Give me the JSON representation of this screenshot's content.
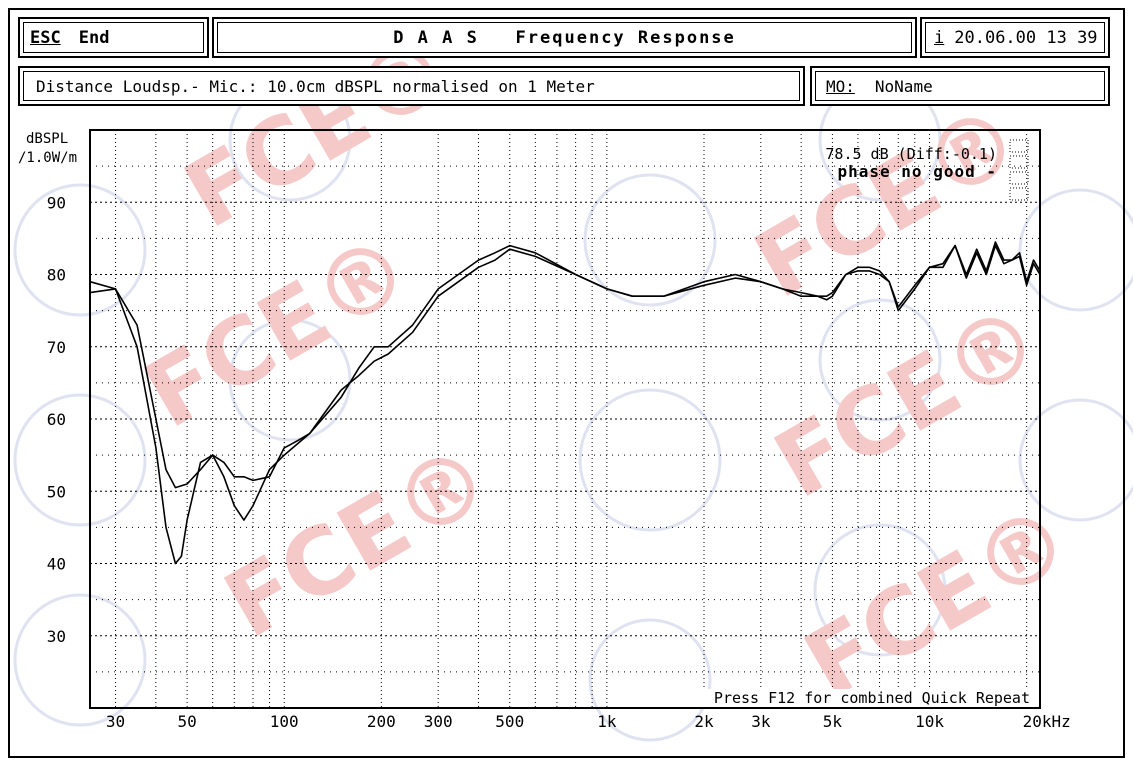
{
  "header": {
    "esc_key": "ESC",
    "end_label": "End",
    "title": "D A A S   Frequency Response",
    "info_key": "i",
    "datetime": "20.06.00 13 39",
    "distance_text": "Distance Loudsp.- Mic.: 10.0cm dBSPL normalised on 1 Meter",
    "mo_key": "MO:",
    "mo_value": "NoName"
  },
  "watermark_text": "FCE®",
  "colors": {
    "curve": "#000000",
    "grid": "#000000",
    "watermark": "#f6c9c9"
  },
  "chart_data": {
    "type": "line",
    "ylabel": "dBSPL",
    "ylabel2": "/1.0W/m",
    "x_scale": "log",
    "xlim": [
      25,
      22000
    ],
    "ylim": [
      20,
      100
    ],
    "xunit": "kHz",
    "x_ticks": [
      30,
      50,
      100,
      200,
      300,
      500,
      1000,
      2000,
      3000,
      5000,
      10000,
      20000
    ],
    "x_tick_labels": [
      "30",
      "50",
      "100",
      "200",
      "300",
      "500",
      "1k",
      "2k",
      "3k",
      "5k",
      "10k",
      "20kHz"
    ],
    "y_ticks": [
      30,
      40,
      50,
      60,
      70,
      80,
      90
    ],
    "y_tick_labels": [
      "30",
      "40",
      "50",
      "60",
      "70",
      "80",
      "90"
    ],
    "grid": true,
    "annotation_value": "78.5 dB (Diff:-0.1)",
    "annotation_phase": "phase no good -",
    "footer_text": "Press F12 for combined Quick Repeat",
    "series": [
      {
        "x": [
          25,
          30,
          35,
          40,
          43,
          46,
          48,
          50,
          55,
          60,
          65,
          70,
          75,
          80,
          90,
          100,
          120,
          150,
          170,
          190,
          210,
          250,
          300,
          400,
          450,
          500,
          600,
          800,
          1000,
          1200,
          1500,
          2000,
          2500,
          3000,
          3500,
          4000,
          4500,
          4800,
          5000,
          5500,
          6000,
          6500,
          7000,
          7500,
          8000,
          9000,
          10000,
          11000,
          12000,
          13000,
          14000,
          15000,
          16000,
          17000,
          18000,
          19000,
          20000,
          21000,
          22000
        ],
        "y": [
          79,
          78,
          70,
          56,
          45,
          40,
          41,
          46,
          54,
          55,
          52,
          48,
          46,
          48,
          53,
          55,
          58,
          63,
          67,
          70,
          70,
          73,
          78,
          82,
          83,
          84,
          83,
          80,
          78,
          77,
          77,
          79,
          80,
          79,
          78,
          77.5,
          77,
          76.5,
          77,
          80,
          81,
          81,
          80.5,
          79,
          75,
          78,
          81,
          81.5,
          84,
          80,
          83.5,
          80.5,
          84.5,
          82,
          82,
          83,
          79,
          82,
          80.5
        ]
      },
      {
        "x": [
          25,
          30,
          35,
          40,
          43,
          46,
          50,
          55,
          60,
          65,
          70,
          75,
          80,
          90,
          100,
          110,
          120,
          150,
          170,
          190,
          210,
          250,
          300,
          400,
          450,
          500,
          600,
          800,
          1000,
          1200,
          1500,
          2000,
          2500,
          3000,
          3500,
          4000,
          4500,
          4800,
          5000,
          5500,
          6000,
          6500,
          7000,
          7500,
          8000,
          9000,
          10000,
          11000,
          12000,
          13000,
          14000,
          15000,
          16000,
          17000,
          18000,
          19000,
          20000,
          21000,
          22000
        ],
        "y": [
          77.5,
          78,
          73,
          60,
          53,
          50.5,
          51,
          53,
          55,
          54,
          52,
          52,
          51.5,
          52,
          56,
          57,
          58,
          64,
          66,
          68,
          69,
          72,
          77,
          81,
          82,
          83.5,
          82.5,
          80,
          78,
          77,
          77,
          78.5,
          79.5,
          79,
          78,
          77,
          77,
          77,
          77.5,
          80,
          80.5,
          80.5,
          80,
          79,
          75.5,
          78.5,
          81,
          81,
          84,
          79.5,
          83,
          80,
          84,
          81.5,
          82,
          82.5,
          78.5,
          81.5,
          80
        ]
      }
    ]
  }
}
